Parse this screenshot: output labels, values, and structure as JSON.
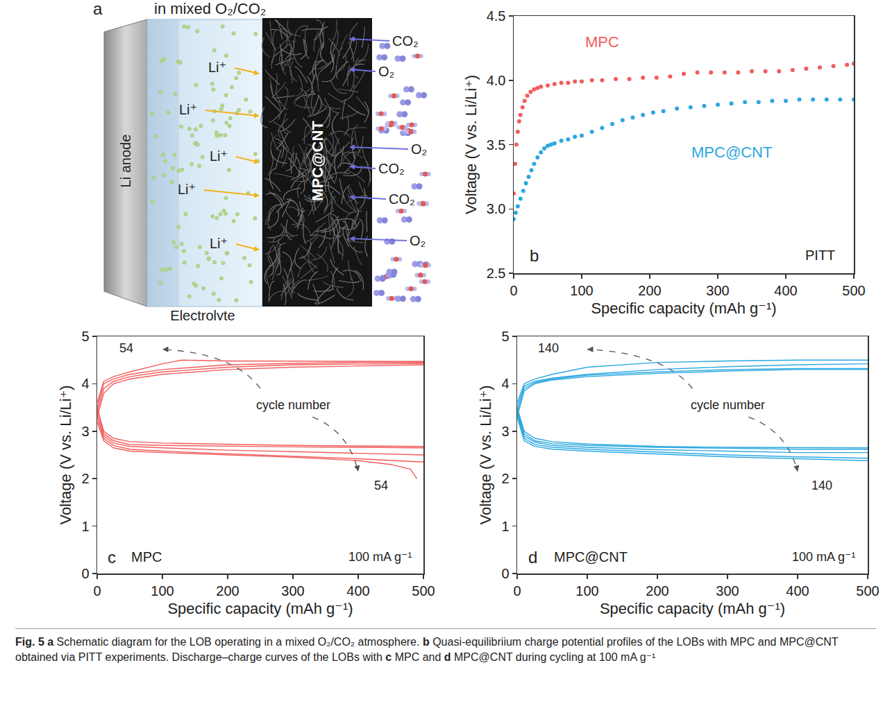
{
  "diagram": {
    "letter": "a",
    "title": "in mixed O₂/CO₂",
    "anode": "Li anode",
    "electrolyte": "Electrolyte",
    "cathode": "MPC@CNT",
    "ions": [
      "Li⁺",
      "Li⁺",
      "Li⁺",
      "Li⁺",
      "Li⁺"
    ],
    "gases": [
      "CO₂",
      "O₂",
      "O₂",
      "CO₂",
      "CO₂",
      "O₂"
    ]
  },
  "chart_data": [
    {
      "type": "scatter",
      "panel": "b",
      "annotation": "PITT",
      "x_label": "Specific capacity (mAh g⁻¹)",
      "y_label": "Voltage (V vs. Li/Li⁺)",
      "xlim": [
        0,
        500
      ],
      "xticks": [
        0,
        100,
        200,
        300,
        400,
        500
      ],
      "ylim": [
        2.5,
        4.5
      ],
      "yticks": [
        2.5,
        {
          "value": 3,
          "label": "3.0"
        },
        3.5,
        {
          "value": 4,
          "label": "4.0"
        },
        4.5
      ],
      "grid": false,
      "series": [
        {
          "name": "MPC",
          "color": "#f25c5c",
          "marker": "circle",
          "x": [
            0,
            2,
            4,
            6,
            8,
            10,
            13,
            16,
            20,
            25,
            30,
            35,
            40,
            50,
            60,
            70,
            80,
            90,
            100,
            115,
            130,
            150,
            170,
            190,
            210,
            230,
            250,
            270,
            290,
            310,
            330,
            350,
            370,
            390,
            410,
            430,
            450,
            470,
            490,
            500
          ],
          "values": [
            3.12,
            3.35,
            3.5,
            3.6,
            3.68,
            3.73,
            3.79,
            3.84,
            3.88,
            3.91,
            3.93,
            3.94,
            3.95,
            3.96,
            3.97,
            3.98,
            3.98,
            3.99,
            3.99,
            4.0,
            4.0,
            4.01,
            4.01,
            4.02,
            4.02,
            4.03,
            4.05,
            4.06,
            4.06,
            4.06,
            4.06,
            4.07,
            4.07,
            4.07,
            4.08,
            4.09,
            4.1,
            4.11,
            4.12,
            4.13
          ]
        },
        {
          "name": "MPC@CNT",
          "color": "#2ba8e0",
          "marker": "circle",
          "x": [
            0,
            3,
            6,
            10,
            14,
            18,
            22,
            26,
            30,
            35,
            40,
            45,
            50,
            55,
            60,
            70,
            80,
            90,
            100,
            115,
            130,
            145,
            160,
            175,
            190,
            205,
            220,
            240,
            260,
            280,
            300,
            320,
            340,
            360,
            380,
            400,
            420,
            440,
            460,
            480,
            500
          ],
          "values": [
            2.92,
            2.97,
            3.02,
            3.08,
            3.14,
            3.2,
            3.25,
            3.3,
            3.35,
            3.4,
            3.44,
            3.47,
            3.49,
            3.5,
            3.51,
            3.53,
            3.54,
            3.56,
            3.57,
            3.6,
            3.63,
            3.66,
            3.69,
            3.71,
            3.73,
            3.75,
            3.76,
            3.78,
            3.79,
            3.8,
            3.81,
            3.82,
            3.83,
            3.83,
            3.84,
            3.84,
            3.85,
            3.85,
            3.85,
            3.85,
            3.85
          ]
        }
      ]
    },
    {
      "type": "line",
      "panel": "c",
      "label": "MPC",
      "rate": "100 mA g⁻¹",
      "cycle_label": "cycle number",
      "cycle_marks": [
        "54",
        "54"
      ],
      "x_label": "Specific capacity (mAh g⁻¹)",
      "y_label": "Voltage (V vs. Li/Li⁺)",
      "xlim": [
        0,
        500
      ],
      "xticks": [
        0,
        100,
        200,
        300,
        400,
        500
      ],
      "ylim": [
        0,
        5
      ],
      "yticks": [
        0,
        1,
        2,
        3,
        4,
        5
      ],
      "grid": false,
      "color": "#f25c5c",
      "series": [
        {
          "x": [
            0,
            10,
            25,
            50,
            100,
            200,
            300,
            400,
            500
          ],
          "values": [
            3.5,
            3.0,
            2.85,
            2.78,
            2.75,
            2.72,
            2.7,
            2.69,
            2.68
          ]
        },
        {
          "x": [
            0,
            10,
            25,
            50,
            100,
            200,
            300,
            400,
            500
          ],
          "values": [
            3.4,
            2.95,
            2.8,
            2.72,
            2.7,
            2.68,
            2.67,
            2.66,
            2.65
          ]
        },
        {
          "x": [
            0,
            10,
            25,
            50,
            100,
            200,
            300,
            400,
            500
          ],
          "values": [
            3.3,
            2.9,
            2.75,
            2.68,
            2.65,
            2.6,
            2.57,
            2.53,
            2.5
          ]
        },
        {
          "x": [
            0,
            10,
            25,
            50,
            100,
            200,
            300,
            400,
            500
          ],
          "values": [
            3.3,
            2.85,
            2.7,
            2.62,
            2.58,
            2.52,
            2.47,
            2.42,
            2.35
          ]
        },
        {
          "x": [
            0,
            10,
            25,
            50,
            100,
            200,
            300,
            400,
            450,
            480,
            490
          ],
          "values": [
            3.2,
            2.8,
            2.65,
            2.58,
            2.55,
            2.5,
            2.45,
            2.38,
            2.3,
            2.2,
            2.0
          ]
        },
        {
          "x": [
            0,
            10,
            25,
            50,
            100,
            200,
            300,
            400,
            500
          ],
          "values": [
            3.3,
            3.8,
            4.0,
            4.1,
            4.2,
            4.3,
            4.35,
            4.38,
            4.4
          ]
        },
        {
          "x": [
            0,
            10,
            25,
            50,
            100,
            200,
            300,
            400,
            500
          ],
          "values": [
            3.4,
            3.9,
            4.05,
            4.15,
            4.25,
            4.35,
            4.4,
            4.42,
            4.43
          ]
        },
        {
          "x": [
            0,
            10,
            25,
            50,
            100,
            200,
            300,
            400,
            500
          ],
          "values": [
            3.5,
            4.0,
            4.1,
            4.2,
            4.3,
            4.4,
            4.43,
            4.45,
            4.45
          ]
        },
        {
          "x": [
            0,
            10,
            25,
            50,
            100,
            130,
            200,
            300,
            400,
            500
          ],
          "values": [
            3.6,
            4.05,
            4.15,
            4.25,
            4.42,
            4.5,
            4.48,
            4.48,
            4.47,
            4.47
          ]
        }
      ]
    },
    {
      "type": "line",
      "panel": "d",
      "label": "MPC@CNT",
      "rate": "100 mA g⁻¹",
      "cycle_label": "cycle number",
      "cycle_marks": [
        "140",
        "140"
      ],
      "x_label": "Specific capacity (mAh g⁻¹)",
      "y_label": "Voltage (V vs. Li/Li⁺)",
      "xlim": [
        0,
        500
      ],
      "xticks": [
        0,
        100,
        200,
        300,
        400,
        500
      ],
      "ylim": [
        0,
        5
      ],
      "yticks": [
        0,
        1,
        2,
        3,
        4,
        5
      ],
      "grid": false,
      "color": "#2ba8e0",
      "series": [
        {
          "x": [
            0,
            10,
            25,
            50,
            100,
            200,
            300,
            400,
            500
          ],
          "values": [
            3.5,
            3.0,
            2.85,
            2.78,
            2.73,
            2.68,
            2.66,
            2.65,
            2.65
          ]
        },
        {
          "x": [
            0,
            10,
            25,
            50,
            100,
            200,
            300,
            400,
            500
          ],
          "values": [
            3.45,
            2.95,
            2.8,
            2.74,
            2.7,
            2.66,
            2.64,
            2.62,
            2.62
          ]
        },
        {
          "x": [
            0,
            10,
            25,
            50,
            100,
            200,
            300,
            400,
            500
          ],
          "values": [
            3.4,
            2.9,
            2.77,
            2.7,
            2.66,
            2.61,
            2.58,
            2.55,
            2.55
          ]
        },
        {
          "x": [
            0,
            10,
            25,
            50,
            100,
            200,
            300,
            400,
            500
          ],
          "values": [
            3.35,
            2.85,
            2.72,
            2.66,
            2.62,
            2.56,
            2.5,
            2.46,
            2.43
          ]
        },
        {
          "x": [
            0,
            10,
            25,
            50,
            100,
            200,
            300,
            400,
            500
          ],
          "values": [
            3.3,
            2.8,
            2.68,
            2.62,
            2.58,
            2.52,
            2.46,
            2.42,
            2.38
          ]
        },
        {
          "x": [
            0,
            10,
            25,
            50,
            100,
            200,
            300,
            400,
            500
          ],
          "values": [
            3.3,
            3.85,
            4.0,
            4.08,
            4.15,
            4.22,
            4.27,
            4.3,
            4.3
          ]
        },
        {
          "x": [
            0,
            10,
            25,
            50,
            100,
            200,
            300,
            400,
            500
          ],
          "values": [
            3.4,
            3.9,
            4.02,
            4.1,
            4.18,
            4.25,
            4.3,
            4.32,
            4.32
          ]
        },
        {
          "x": [
            0,
            10,
            25,
            50,
            100,
            200,
            300,
            400,
            500
          ],
          "values": [
            3.5,
            3.95,
            4.05,
            4.12,
            4.2,
            4.3,
            4.36,
            4.4,
            4.42
          ]
        },
        {
          "x": [
            0,
            10,
            25,
            50,
            100,
            200,
            300,
            400,
            500
          ],
          "values": [
            3.6,
            4.0,
            4.1,
            4.2,
            4.35,
            4.45,
            4.48,
            4.5,
            4.5
          ]
        }
      ]
    }
  ],
  "caption": [
    {
      "text": "Fig. 5",
      "bold": true
    },
    {
      "text": " a",
      "bold": true
    },
    {
      "text": " Schematic diagram for the LOB operating in a mixed O₂/CO₂ atmosphere. "
    },
    {
      "text": "b",
      "bold": true
    },
    {
      "text": " Quasi-equilibriium charge potential profiles of the LOBs with MPC and MPC@CNT obtained via PITT experiments. Discharge–charge curves of the LOBs with "
    },
    {
      "text": "c",
      "bold": true
    },
    {
      "text": " MPC and "
    },
    {
      "text": "d",
      "bold": true
    },
    {
      "text": " MPC@CNT during cycling at 100 mA g⁻¹"
    }
  ]
}
